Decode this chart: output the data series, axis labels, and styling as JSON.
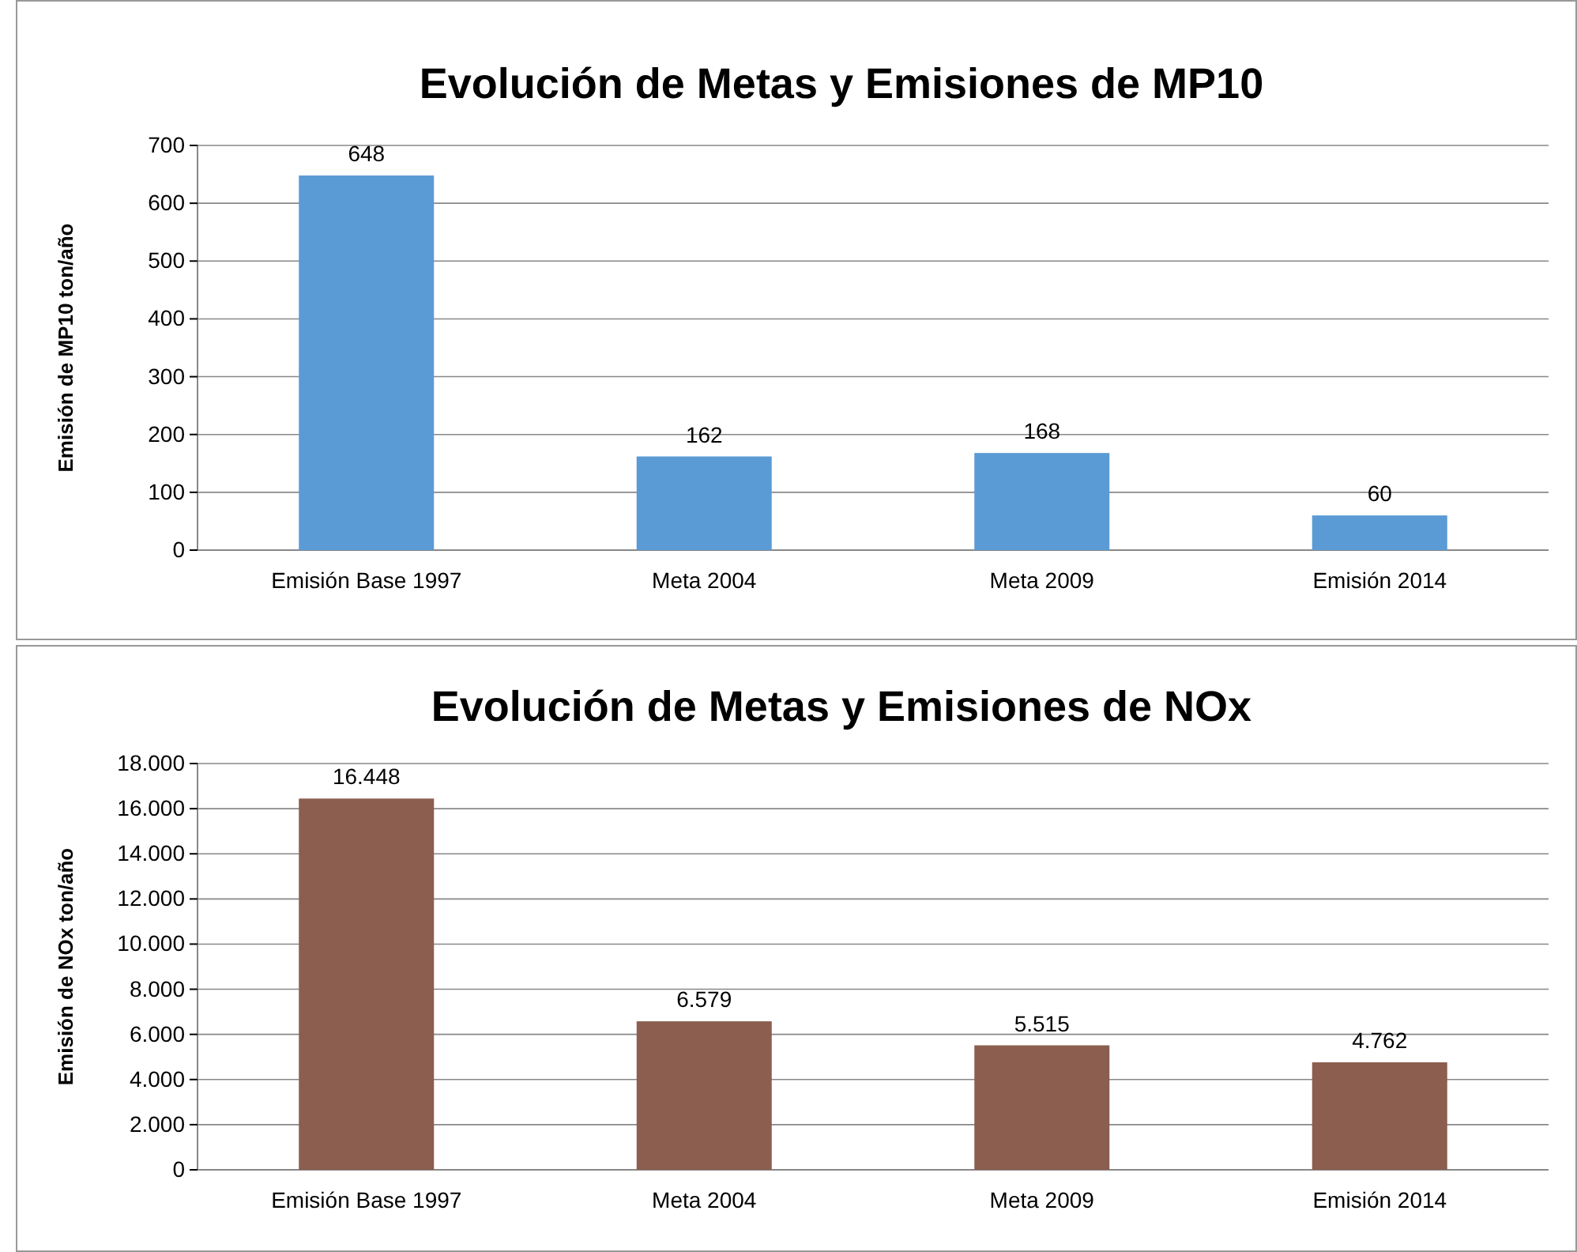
{
  "chart_data": [
    {
      "type": "bar",
      "title": "Evolución de Metas y Emisiones de MP10",
      "ylabel": "Emisión de MP10 ton/año",
      "categories": [
        "Emisión Base 1997",
        "Meta 2004",
        "Meta 2009",
        "Emisión 2014"
      ],
      "values": [
        648,
        162,
        168,
        60
      ],
      "color": "#5b9bd5",
      "ylim": [
        0,
        700
      ],
      "yticks": [
        0,
        100,
        200,
        300,
        400,
        500,
        600,
        700
      ],
      "grid": "y",
      "data_labels": true
    },
    {
      "type": "bar",
      "title": "Evolución de Metas y Emisiones de NOx",
      "ylabel": "Emisión de NOx ton/año",
      "categories": [
        "Emisión Base 1997",
        "Meta 2004",
        "Meta 2009",
        "Emisión 2014"
      ],
      "values": [
        16448,
        6579,
        5515,
        4762
      ],
      "value_labels": [
        "16.448",
        "6.579",
        "5.515",
        "4.762"
      ],
      "color": "#8b5e4f",
      "ylim": [
        0,
        18000
      ],
      "yticks": [
        0,
        {
          "value": 2000,
          "label": "2.000"
        },
        {
          "value": 4000,
          "label": "4.000"
        },
        {
          "value": 6000,
          "label": "6.000"
        },
        {
          "value": 8000,
          "label": "8.000"
        },
        {
          "value": 10000,
          "label": "10.000"
        },
        {
          "value": 12000,
          "label": "12.000"
        },
        {
          "value": 14000,
          "label": "14.000"
        },
        {
          "value": 16000,
          "label": "16.000"
        },
        {
          "value": 18000,
          "label": "18.000"
        }
      ],
      "grid": "y"
    }
  ]
}
